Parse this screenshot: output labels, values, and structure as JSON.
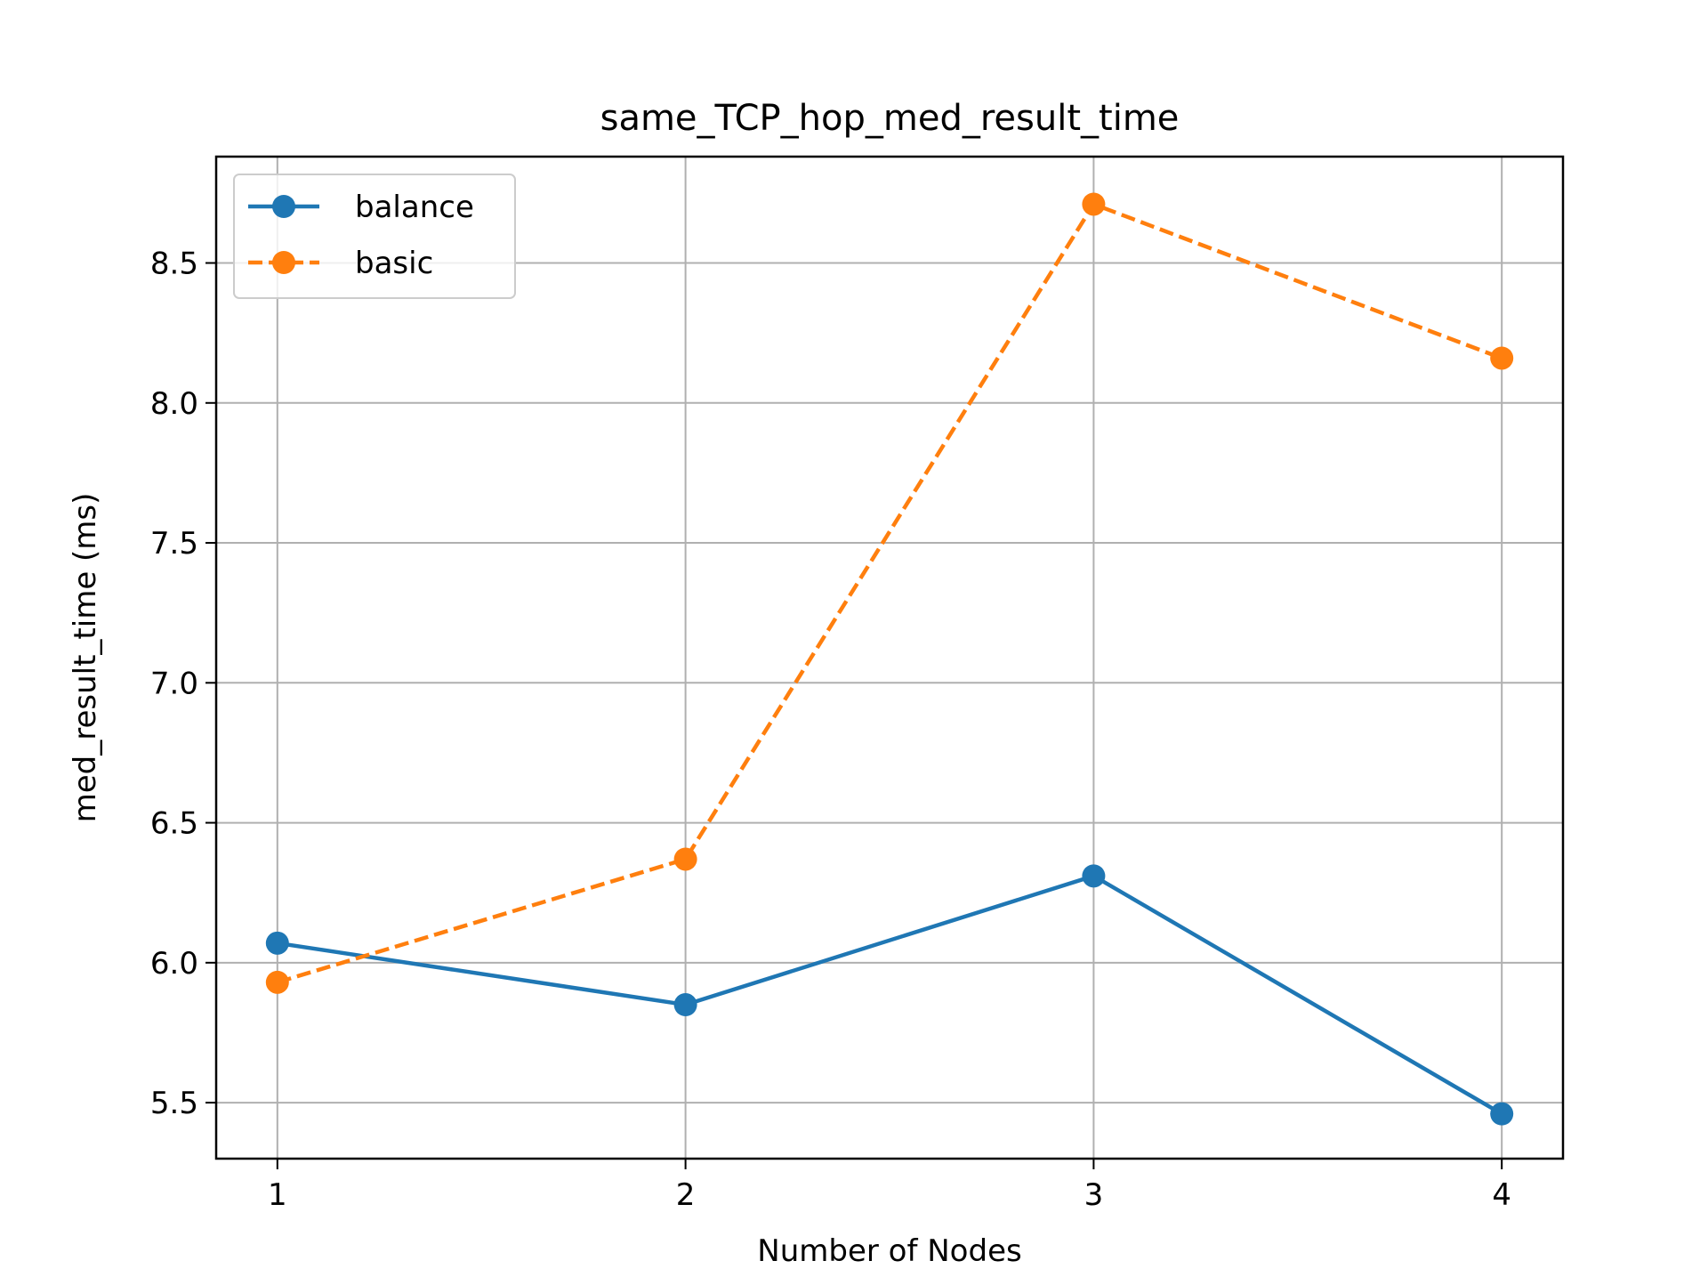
{
  "chart_data": {
    "type": "line",
    "title": "same_TCP_hop_med_result_time",
    "xlabel": "Number of Nodes",
    "ylabel": "med_result_time (ms)",
    "x": [
      1,
      2,
      3,
      4
    ],
    "xlim": [
      0.85,
      4.15
    ],
    "ylim": [
      5.3,
      8.88
    ],
    "xticks": [
      1,
      2,
      3,
      4
    ],
    "xtick_labels": [
      "1",
      "2",
      "3",
      "4"
    ],
    "yticks": [
      5.5,
      6.0,
      6.5,
      7.0,
      7.5,
      8.0,
      8.5
    ],
    "ytick_labels": [
      "5.5",
      "6.0",
      "6.5",
      "7.0",
      "7.5",
      "8.0",
      "8.5"
    ],
    "grid": true,
    "legend_position": "upper left",
    "series": [
      {
        "name": "balance",
        "values": [
          6.07,
          5.85,
          6.31,
          5.46
        ],
        "color": "#1f77b4",
        "line_style": "solid",
        "marker": "circle"
      },
      {
        "name": "basic",
        "values": [
          5.93,
          6.37,
          8.71,
          8.16
        ],
        "color": "#ff7f0e",
        "line_style": "dashed",
        "marker": "circle"
      }
    ]
  }
}
